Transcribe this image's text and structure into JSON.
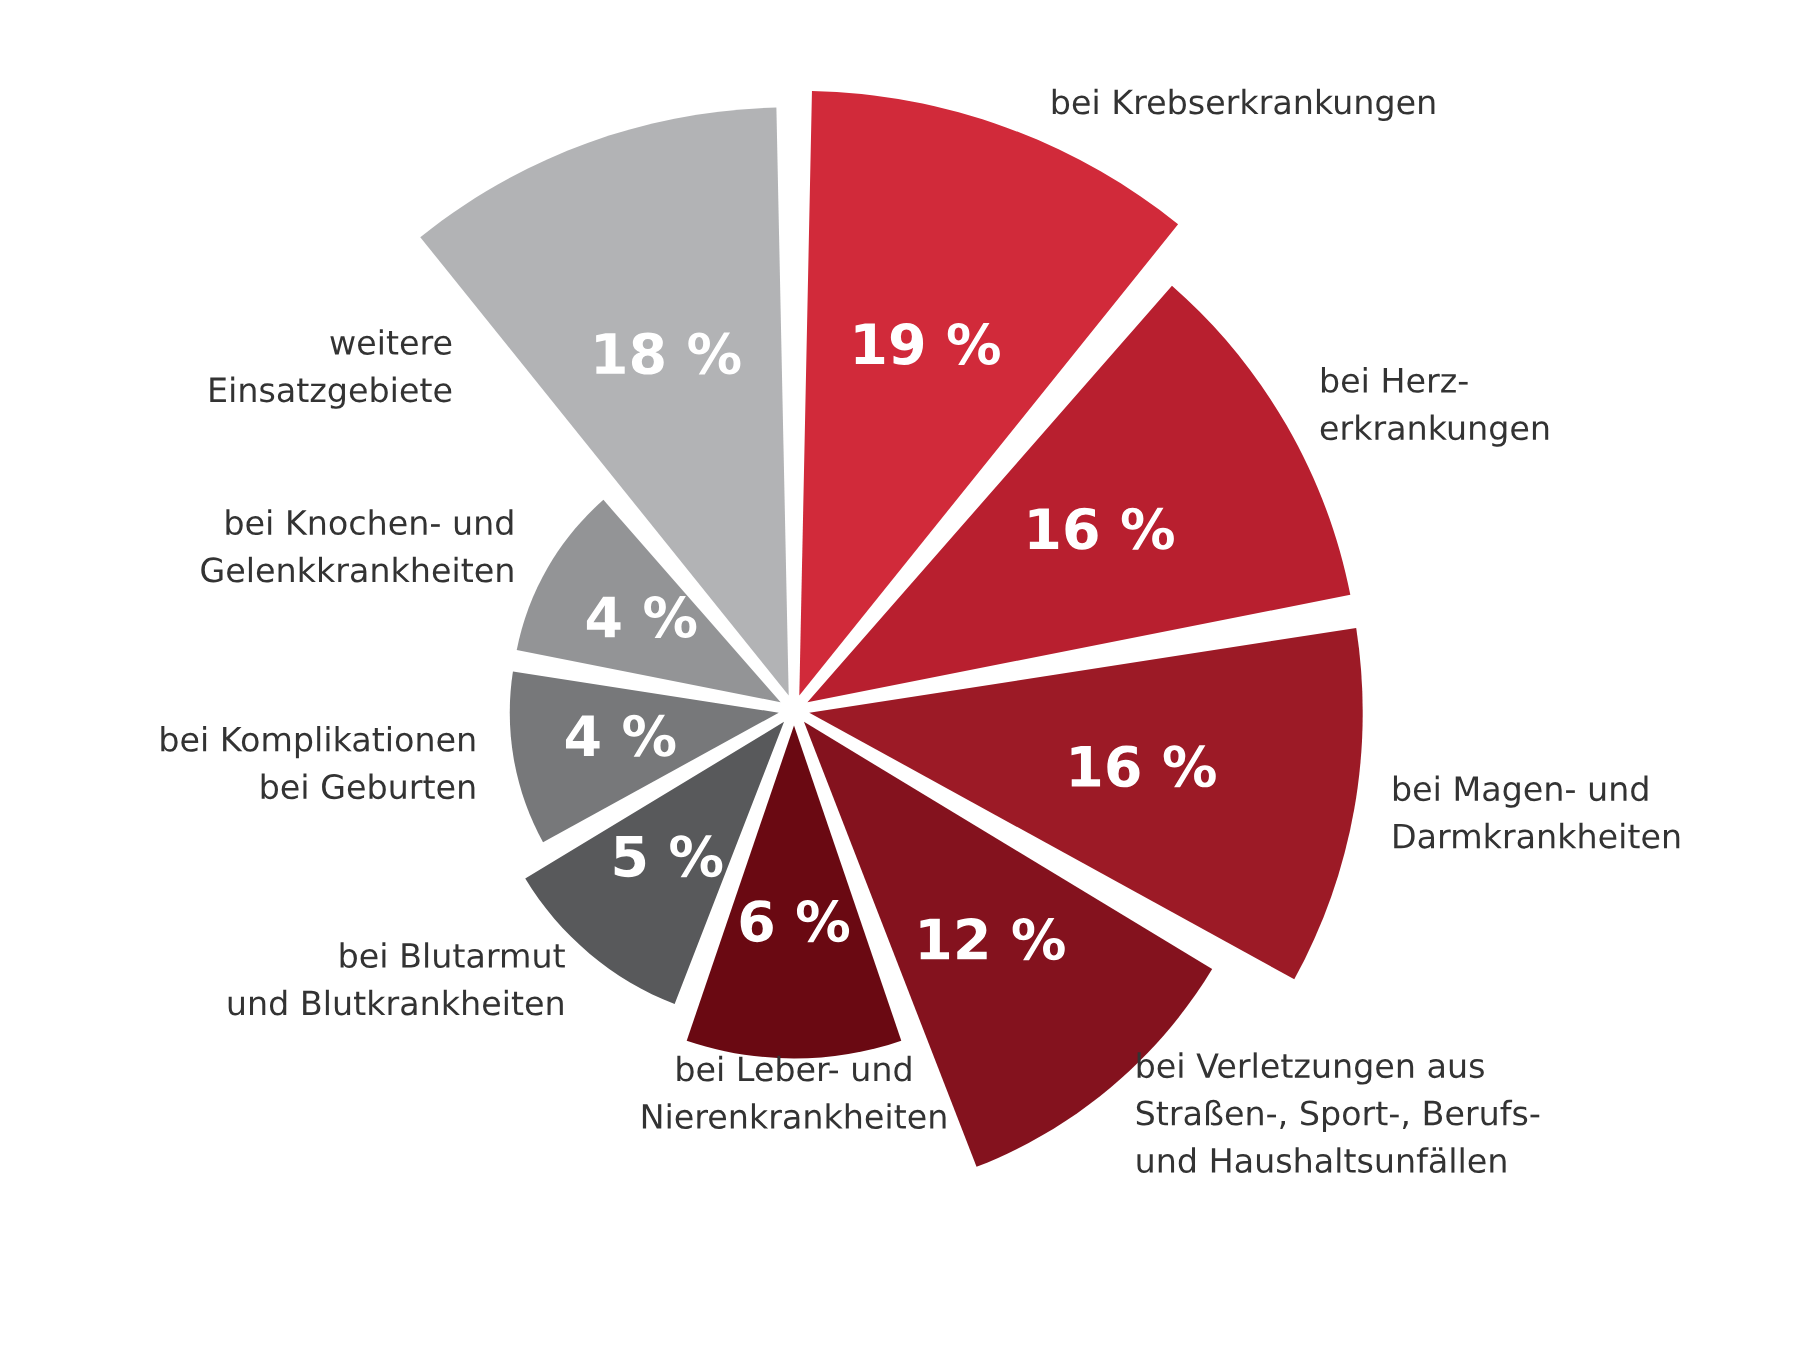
{
  "chart_data": {
    "type": "other",
    "categories": [
      "bei Krebserkrankungen",
      "bei Herz-\nerkrankungen",
      "bei Magen- und\nDarmkrankheiten",
      "bei Verletzungen aus\nStraßen-, Sport-, Berufs-\nund Haushaltsunfällen",
      "bei Leber- und\nNierenkrankheiten",
      "bei Blutarmut\nund Blutkrankheiten",
      "bei Komplikationen\nbei Geburten",
      "bei Knochen- und\nGelenkkrankheiten",
      "weitere\nEinsatzgebiete"
    ],
    "values": [
      19,
      16,
      16,
      12,
      6,
      5,
      4,
      4,
      18
    ],
    "value_labels": [
      "19 %",
      "16 %",
      "16 %",
      "12 %",
      "6 %",
      "5 %",
      "4 %",
      "4 %",
      "18 %"
    ],
    "colors": [
      "#d12a3a",
      "#b81f2f",
      "#9c1a26",
      "#84121e",
      "#6a0912",
      "#58595b",
      "#77787a",
      "#939496",
      "#b2b3b5"
    ]
  }
}
